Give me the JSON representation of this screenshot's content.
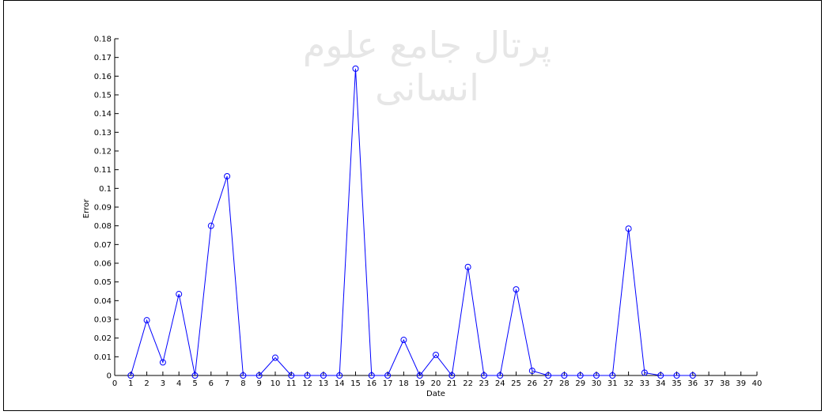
{
  "chart_data": {
    "type": "line",
    "title": "",
    "xlabel": "Date",
    "ylabel": "Error",
    "xlim": [
      0,
      40
    ],
    "ylim": [
      0,
      0.18
    ],
    "x_ticks": [
      0,
      1,
      2,
      3,
      4,
      5,
      6,
      7,
      8,
      9,
      10,
      11,
      12,
      13,
      14,
      15,
      16,
      17,
      18,
      19,
      20,
      21,
      22,
      23,
      24,
      25,
      26,
      27,
      28,
      29,
      30,
      31,
      32,
      33,
      34,
      35,
      36,
      37,
      38,
      39,
      40
    ],
    "y_ticks": [
      0,
      0.01,
      0.02,
      0.03,
      0.04,
      0.05,
      0.06,
      0.07,
      0.08,
      0.09,
      0.1,
      0.11,
      0.12,
      0.13,
      0.14,
      0.15,
      0.16,
      0.17,
      0.18
    ],
    "y_tick_labels": [
      "0",
      "0.01",
      "0.02",
      "0.03",
      "0.04",
      "0.05",
      "0.06",
      "0.07",
      "0.08",
      "0.09",
      "0.1",
      "0.11",
      "0.12",
      "0.13",
      "0.14",
      "0.15",
      "0.16",
      "0.17",
      "0.18"
    ],
    "grid": false,
    "marker": "circle",
    "line_color": "#0000ff",
    "series": [
      {
        "x": [
          1,
          2,
          3,
          4,
          5,
          6,
          7,
          8,
          9,
          10,
          11,
          12,
          13,
          14,
          15,
          16,
          17,
          18,
          19,
          20,
          21,
          22,
          23,
          24,
          25,
          26,
          27,
          28,
          29,
          30,
          31,
          32,
          33,
          34,
          35,
          36
        ],
        "values": [
          0.0,
          0.0295,
          0.007,
          0.0435,
          0.0,
          0.08,
          0.1065,
          0.0,
          0.0,
          0.0095,
          0.0,
          0.0,
          0.0,
          0.0,
          0.164,
          0.0,
          0.0,
          0.019,
          0.0,
          0.011,
          0.0,
          0.058,
          0.0,
          0.0,
          0.046,
          0.0025,
          0.0,
          0.0,
          0.0,
          0.0,
          0.0,
          0.0785,
          0.0015,
          0.0,
          0.0,
          0.0
        ]
      }
    ]
  },
  "watermark": {
    "text": "پرتال جامع علوم انسانی"
  }
}
